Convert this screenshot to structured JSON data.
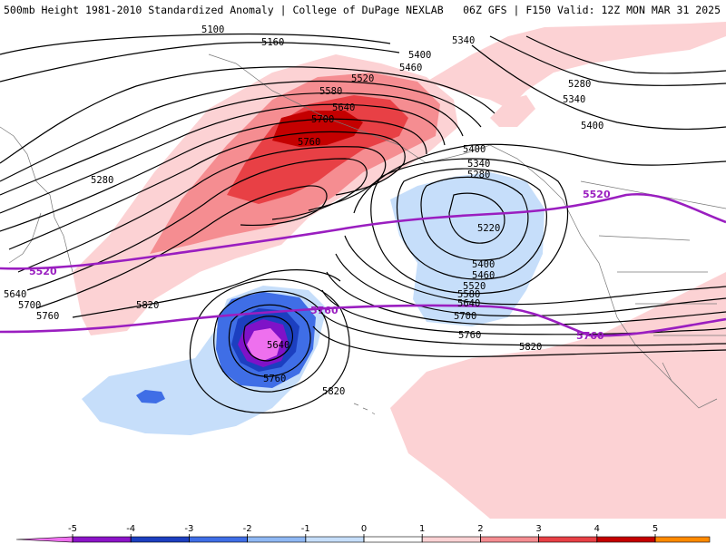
{
  "header": {
    "left": "500mb Height 1981-2010 Standardized Anomaly | College of DuPage NEXLAB",
    "right": "06Z GFS | F150 Valid: 12Z MON MAR 31 2025"
  },
  "colors": {
    "pos1": "#fcd2d4",
    "pos2": "#f58d91",
    "pos3": "#e84045",
    "pos4": "#c40000",
    "neg1": "#c6defa",
    "neg2": "#3f6ee6",
    "neg3": "#1c3fc0",
    "neg4": "#7f12c8",
    "neg5": "#ee70ee",
    "contour": "#000000",
    "highlight": "#9a1ec0"
  },
  "contour_labels": [
    "5100",
    "5160",
    "5340",
    "5400",
    "5460",
    "5520",
    "5580",
    "5640",
    "5700",
    "5760",
    "5280",
    "5280",
    "5340",
    "5400",
    "5400",
    "5340",
    "5280",
    "5220",
    "5400",
    "5460",
    "5520",
    "5580",
    "5640",
    "5700",
    "5760",
    "5820",
    "5640",
    "5700",
    "5760",
    "5820",
    "5640",
    "5760",
    "5820"
  ],
  "highlight_labels": [
    "5520",
    "5520",
    "5760",
    "5760"
  ],
  "legend": {
    "ticks": [
      "-5",
      "-4",
      "-3",
      "-2",
      "-1",
      "0",
      "1",
      "2",
      "3",
      "4",
      "5"
    ],
    "colors": [
      "#ee70ee",
      "#8c14c8",
      "#1c3fc0",
      "#3f6ee6",
      "#8fb8f4",
      "#c6defa",
      "#ffffff",
      "#fcd2d4",
      "#f58d91",
      "#e84045",
      "#c40000",
      "#ff8a00",
      "#ffc000"
    ]
  }
}
